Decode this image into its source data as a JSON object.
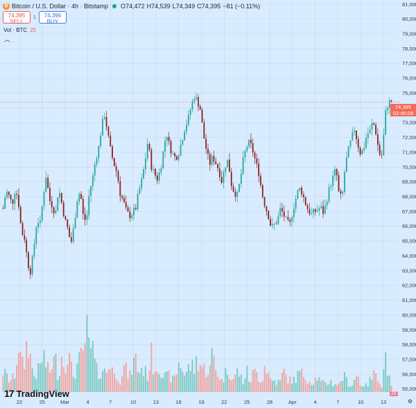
{
  "legend": {
    "coin_icon": "bitcoin-icon",
    "symbol": "Bitcoin / U.S. Dollar · 4h · Bitstamp",
    "open_label": "O",
    "open": "74,472",
    "high_label": "H",
    "high": "74,539",
    "low_label": "L",
    "low": "74,349",
    "close_label": "C",
    "close": "74,395",
    "change": "−81 (−0.11%)"
  },
  "trade": {
    "sell_price": "74,395",
    "sell_label": "SELL",
    "spread": "1",
    "buy_price": "74,396",
    "buy_label": "BUY"
  },
  "volume": {
    "label": "Vol · BTC",
    "value": "25"
  },
  "collapse_icon": "chevron-up-icon",
  "price_tag": {
    "price": "74,395",
    "countdown": "02:45:09"
  },
  "volume_badge": "25",
  "logo_text": "TradingView",
  "colors": {
    "up": "#26a69a",
    "down": "#8a1f1f",
    "vol_up": "#7fcac3",
    "vol_down": "#f0a7a2",
    "bg": "#d9ecff",
    "grid": "#c3d8ee"
  },
  "chart_data": {
    "type": "candlestick",
    "symbol": "BTCUSD",
    "interval": "4h",
    "y_axis_ticks": [
      "81,000",
      "80,000",
      "79,000",
      "78,000",
      "77,000",
      "76,000",
      "75,000",
      "74,000",
      "73,000",
      "72,000",
      "71,000",
      "70,000",
      "69,000",
      "68,000",
      "67,000",
      "66,000",
      "65,000",
      "64,000",
      "63,000",
      "62,000",
      "61,000",
      "60,000",
      "59,000",
      "58,000",
      "57,000",
      "56,000",
      "55,000"
    ],
    "ylim": [
      54800,
      81200
    ],
    "x_axis_ticks": [
      "22",
      "25",
      "Mar",
      "4",
      "7",
      "10",
      "13",
      "16",
      "19",
      "22",
      "25",
      "28",
      "Apr",
      "4",
      "7",
      "10",
      "13"
    ],
    "close_path": [
      67200,
      68400,
      68000,
      67500,
      68600,
      67600,
      65600,
      65200,
      63500,
      62900,
      64600,
      66500,
      66100,
      68000,
      69500,
      67800,
      67400,
      66800,
      68600,
      67600,
      66500,
      65800,
      64800,
      66000,
      67800,
      68400,
      66700,
      66300,
      68300,
      69200,
      70500,
      71300,
      72800,
      73600,
      72200,
      71000,
      70200,
      69600,
      68200,
      67700,
      67000,
      66700,
      66900,
      67200,
      68300,
      69100,
      70300,
      71800,
      70100,
      69600,
      69200,
      69800,
      71100,
      72400,
      71400,
      70900,
      70600,
      71000,
      71800,
      72700,
      73200,
      74100,
      74800,
      74500,
      73900,
      72200,
      71100,
      70200,
      70700,
      70300,
      69800,
      69000,
      70100,
      70500,
      68900,
      68300,
      68100,
      69200,
      70600,
      71400,
      71700,
      71100,
      70300,
      69600,
      68200,
      67400,
      66800,
      65900,
      66100,
      66400,
      67200,
      66800,
      66300,
      66100,
      67100,
      67900,
      68600,
      68300,
      67600,
      67100,
      66800,
      67000,
      67100,
      67300,
      66900,
      67800,
      68700,
      69300,
      69900,
      68100,
      67900,
      70100,
      71100,
      71900,
      72600,
      71600,
      70900,
      71300,
      72200,
      72400,
      73100,
      72300,
      70900,
      70800,
      73600,
      74400,
      74395
    ],
    "volume_path": [
      0.21,
      0.17,
      0.12,
      0.13,
      0.2,
      0.53,
      0.26,
      0.3,
      0.58,
      0.32,
      0.17,
      0.19,
      0.26,
      0.4,
      0.28,
      0.18,
      0.31,
      0.33,
      0.15,
      0.37,
      0.27,
      0.43,
      0.25,
      0.16,
      0.27,
      0.33,
      0.38,
      0.65,
      0.41,
      0.46,
      0.24,
      0.18,
      0.25,
      0.2,
      0.23,
      0.34,
      0.15,
      0.21,
      0.12,
      0.26,
      0.22,
      0.14,
      0.27,
      0.35,
      0.19,
      0.25,
      0.21,
      0.17,
      0.39,
      0.24,
      0.27,
      0.27,
      0.17,
      0.15,
      0.17,
      0.12,
      0.16,
      0.3,
      0.27,
      0.17,
      0.24,
      0.28,
      0.23,
      0.35,
      0.29,
      0.24,
      0.23,
      0.21,
      0.42,
      0.24,
      0.18,
      0.11,
      0.18,
      0.25,
      0.18,
      0.12,
      0.22,
      0.16,
      0.1,
      0.22,
      0.1,
      0.18,
      0.21,
      0.15,
      0.12,
      0.3,
      0.2,
      0.11,
      0.12,
      0.1,
      0.11,
      0.22,
      0.15,
      0.12,
      0.12,
      0.14,
      0.2,
      0.18,
      0.17,
      0.13,
      0.1,
      0.12,
      0.16,
      0.1,
      0.09,
      0.08,
      0.12,
      0.08,
      0.09,
      0.07,
      0.16,
      0.15,
      0.09,
      0.06,
      0.13,
      0.18,
      0.07,
      0.08,
      0.06,
      0.12,
      0.15,
      0.23,
      0.13,
      0.05,
      0.4,
      0.18,
      0.05
    ]
  }
}
